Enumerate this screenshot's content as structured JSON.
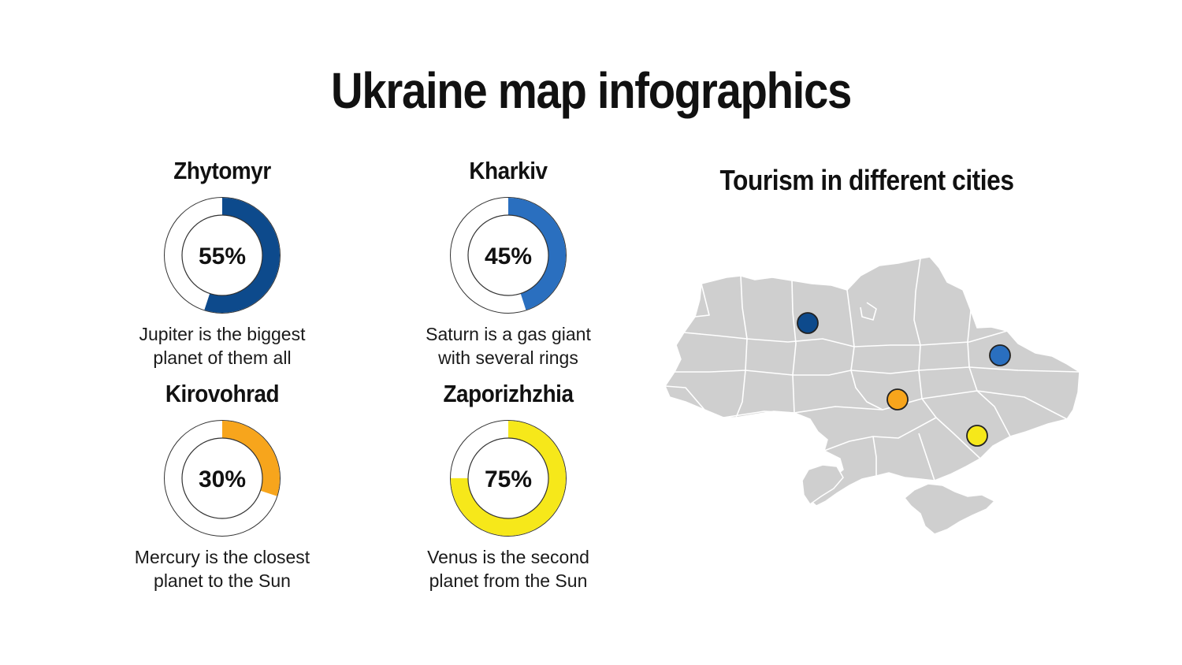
{
  "title": "Ukraine map infographics",
  "map": {
    "title": "Tourism in different cities",
    "fill_color": "#cfcfcf",
    "border_color": "#ffffff",
    "markers": [
      {
        "city": "Zhytomyr",
        "color": "#0d4a8c"
      },
      {
        "city": "Kharkiv",
        "color": "#2a6fbf"
      },
      {
        "city": "Kirovohrad",
        "color": "#f7a51c"
      },
      {
        "city": "Zaporizhzhia",
        "color": "#f6e81a"
      }
    ]
  },
  "cards": [
    {
      "name": "Zhytomyr",
      "value": 55,
      "percent_label": "55%",
      "color": "#0d4a8c",
      "description": "Jupiter is the biggest\nplanet of them all"
    },
    {
      "name": "Kharkiv",
      "value": 45,
      "percent_label": "45%",
      "color": "#2a6fbf",
      "description": "Saturn is a gas giant\nwith several rings"
    },
    {
      "name": "Kirovohrad",
      "value": 30,
      "percent_label": "30%",
      "color": "#f7a51c",
      "description": "Mercury is the closest\nplanet to the Sun"
    },
    {
      "name": "Zaporizhzhia",
      "value": 75,
      "percent_label": "75%",
      "color": "#f6e81a",
      "description": "Venus is the second\nplanet from the Sun"
    }
  ]
}
